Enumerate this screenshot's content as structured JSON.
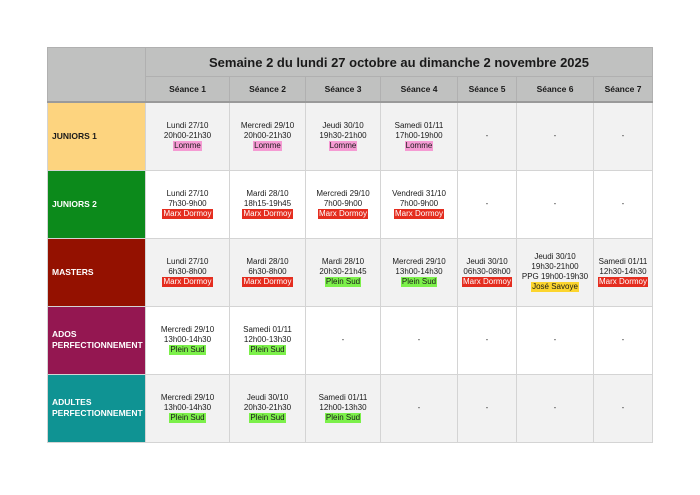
{
  "title": "Semaine 2 du lundi 27 octobre au dimanche 2 novembre 2025",
  "columns": [
    "Séance 1",
    "Séance 2",
    "Séance 3",
    "Séance 4",
    "Séance 5",
    "Séance 6",
    "Séance 7"
  ],
  "location_colors": {
    "Lomme": {
      "bg": "#f59bd3",
      "fg": "#1a1a1a"
    },
    "Marx Dormoy": {
      "bg": "#e42d1f",
      "fg": "#ffffff"
    },
    "Plein Sud": {
      "bg": "#7cf04a",
      "fg": "#1a1a1a"
    },
    "José Savoye": {
      "bg": "#fcd52e",
      "fg": "#1a1a1a"
    }
  },
  "groups": [
    {
      "name": "JUNIORS 1",
      "color": "#fdd47f",
      "text_color": "#1a1a1a",
      "alt": true,
      "sessions": [
        {
          "day": "Lundi 27/10",
          "time": "20h00-21h30",
          "location": "Lomme"
        },
        {
          "day": "Mercredi 29/10",
          "time": "20h00-21h30",
          "location": "Lomme"
        },
        {
          "day": "Jeudi 30/10",
          "time": "19h30-21h00",
          "location": "Lomme"
        },
        {
          "day": "Samedi 01/11",
          "time": "17h00-19h00",
          "location": "Lomme"
        },
        {
          "empty": "-"
        },
        {
          "empty": "-"
        },
        {
          "empty": "-"
        }
      ]
    },
    {
      "name": "JUNIORS 2",
      "color": "#0c8a1b",
      "text_color": "#ffffff",
      "alt": false,
      "sessions": [
        {
          "day": "Lundi 27/10",
          "time": "7h30-9h00",
          "location": "Marx Dormoy"
        },
        {
          "day": "Mardi 28/10",
          "time": "18h15-19h45",
          "location": "Marx Dormoy"
        },
        {
          "day": "Mercredi 29/10",
          "time": "7h00-9h00",
          "location": "Marx Dormoy"
        },
        {
          "day": "Vendredi 31/10",
          "time": "7h00-9h00",
          "location": "Marx Dormoy"
        },
        {
          "empty": "-"
        },
        {
          "empty": "-"
        },
        {
          "empty": "-"
        }
      ]
    },
    {
      "name": "MASTERS",
      "color": "#941100",
      "text_color": "#ffffff",
      "alt": true,
      "sessions": [
        {
          "day": "Lundi 27/10",
          "time": "6h30-8h00",
          "location": "Marx Dormoy"
        },
        {
          "day": "Mardi 28/10",
          "time": "6h30-8h00",
          "location": "Marx Dormoy"
        },
        {
          "day": "Mardi 28/10",
          "time": "20h30-21h45",
          "location": "Plein Sud"
        },
        {
          "day": "Mercredi 29/10",
          "time": "13h00-14h30",
          "location": "Plein Sud"
        },
        {
          "day": "Jeudi 30/10",
          "time": "06h30-08h00",
          "location": "Marx Dormoy"
        },
        {
          "day": "Jeudi 30/10",
          "time": "19h30-21h00",
          "extra": "PPG 19h00-19h30",
          "location": "José Savoye"
        },
        {
          "day": "Samedi 01/11",
          "time": "12h30-14h30",
          "location": "Marx Dormoy"
        }
      ]
    },
    {
      "name_lines": [
        "ADOS",
        "PERFECTIONNEMENT"
      ],
      "color": "#941751",
      "text_color": "#ffffff",
      "alt": false,
      "sessions": [
        {
          "day": "Mercredi 29/10",
          "time": "13h00-14h30",
          "location": "Plein Sud"
        },
        {
          "day": "Samedi 01/11",
          "time": "12h00-13h30",
          "location": "Plein Sud"
        },
        {
          "empty": "-"
        },
        {
          "empty": "-"
        },
        {
          "empty": "-"
        },
        {
          "empty": "-"
        },
        {
          "empty": "-"
        }
      ]
    },
    {
      "name_lines": [
        "ADULTES",
        "PERFECTIONNEMENT"
      ],
      "color": "#0f9393",
      "text_color": "#ffffff",
      "alt": true,
      "sessions": [
        {
          "day": "Mercredi 29/10",
          "time": "13h00-14h30",
          "location": "Plein Sud"
        },
        {
          "day": "Jeudi 30/10",
          "time": "20h30-21h30",
          "location": "Plein Sud"
        },
        {
          "day": "Samedi 01/11",
          "time": "12h00-13h30",
          "location": "Plein Sud"
        },
        {
          "empty": "-"
        },
        {
          "empty": "-"
        },
        {
          "empty": "-"
        },
        {
          "empty": "-"
        }
      ]
    }
  ]
}
